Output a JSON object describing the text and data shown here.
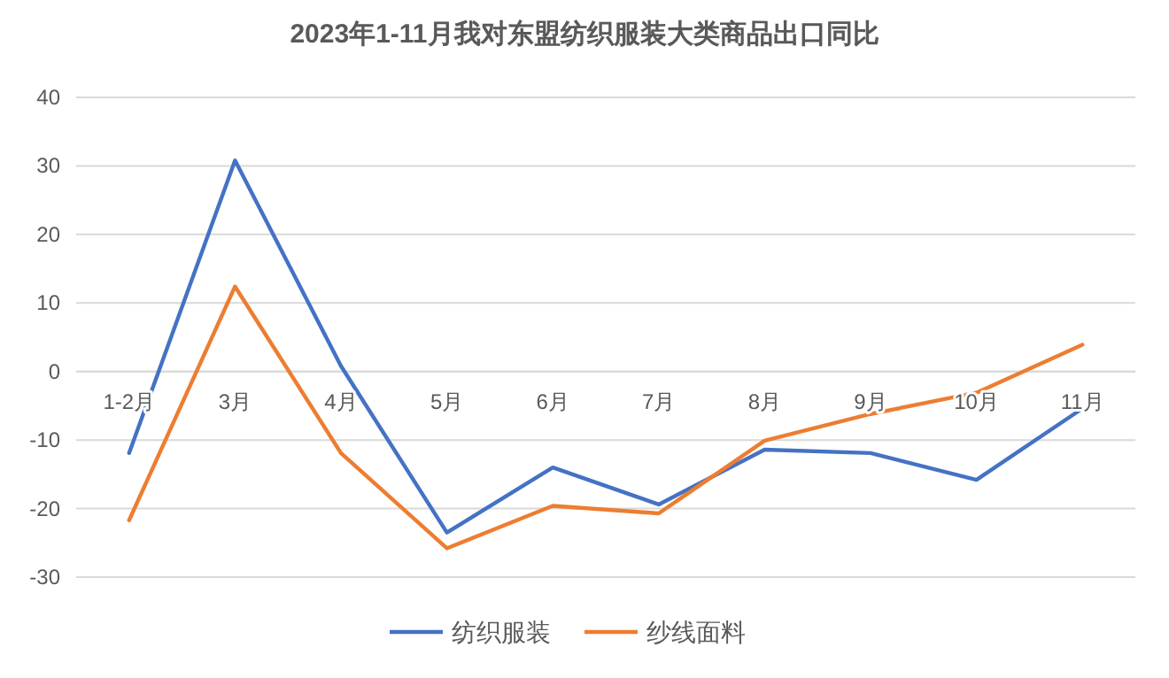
{
  "chart_data": {
    "type": "line",
    "title": "2023年1-11月我对东盟纺织服装大类商品出口同比",
    "categories": [
      "1-2月",
      "3月",
      "4月",
      "5月",
      "6月",
      "7月",
      "8月",
      "9月",
      "10月",
      "11月"
    ],
    "series": [
      {
        "name": "纺织服装",
        "color": "#4472c4",
        "values": [
          -11.9,
          30.8,
          0.8,
          -23.5,
          -14,
          -19.4,
          -11.4,
          -11.9,
          -15.8,
          -5.4
        ]
      },
      {
        "name": "纱线面料",
        "color": "#ed7d31",
        "values": [
          -21.7,
          12.4,
          -11.9,
          -25.8,
          -19.6,
          -20.7,
          -10.1,
          -6.2,
          -3.1,
          3.9
        ]
      }
    ],
    "ylim": [
      -30,
      40
    ],
    "yticks": [
      -30,
      -20,
      -10,
      0,
      10,
      20,
      30,
      40
    ],
    "grid": "y",
    "legend": "bottom"
  }
}
